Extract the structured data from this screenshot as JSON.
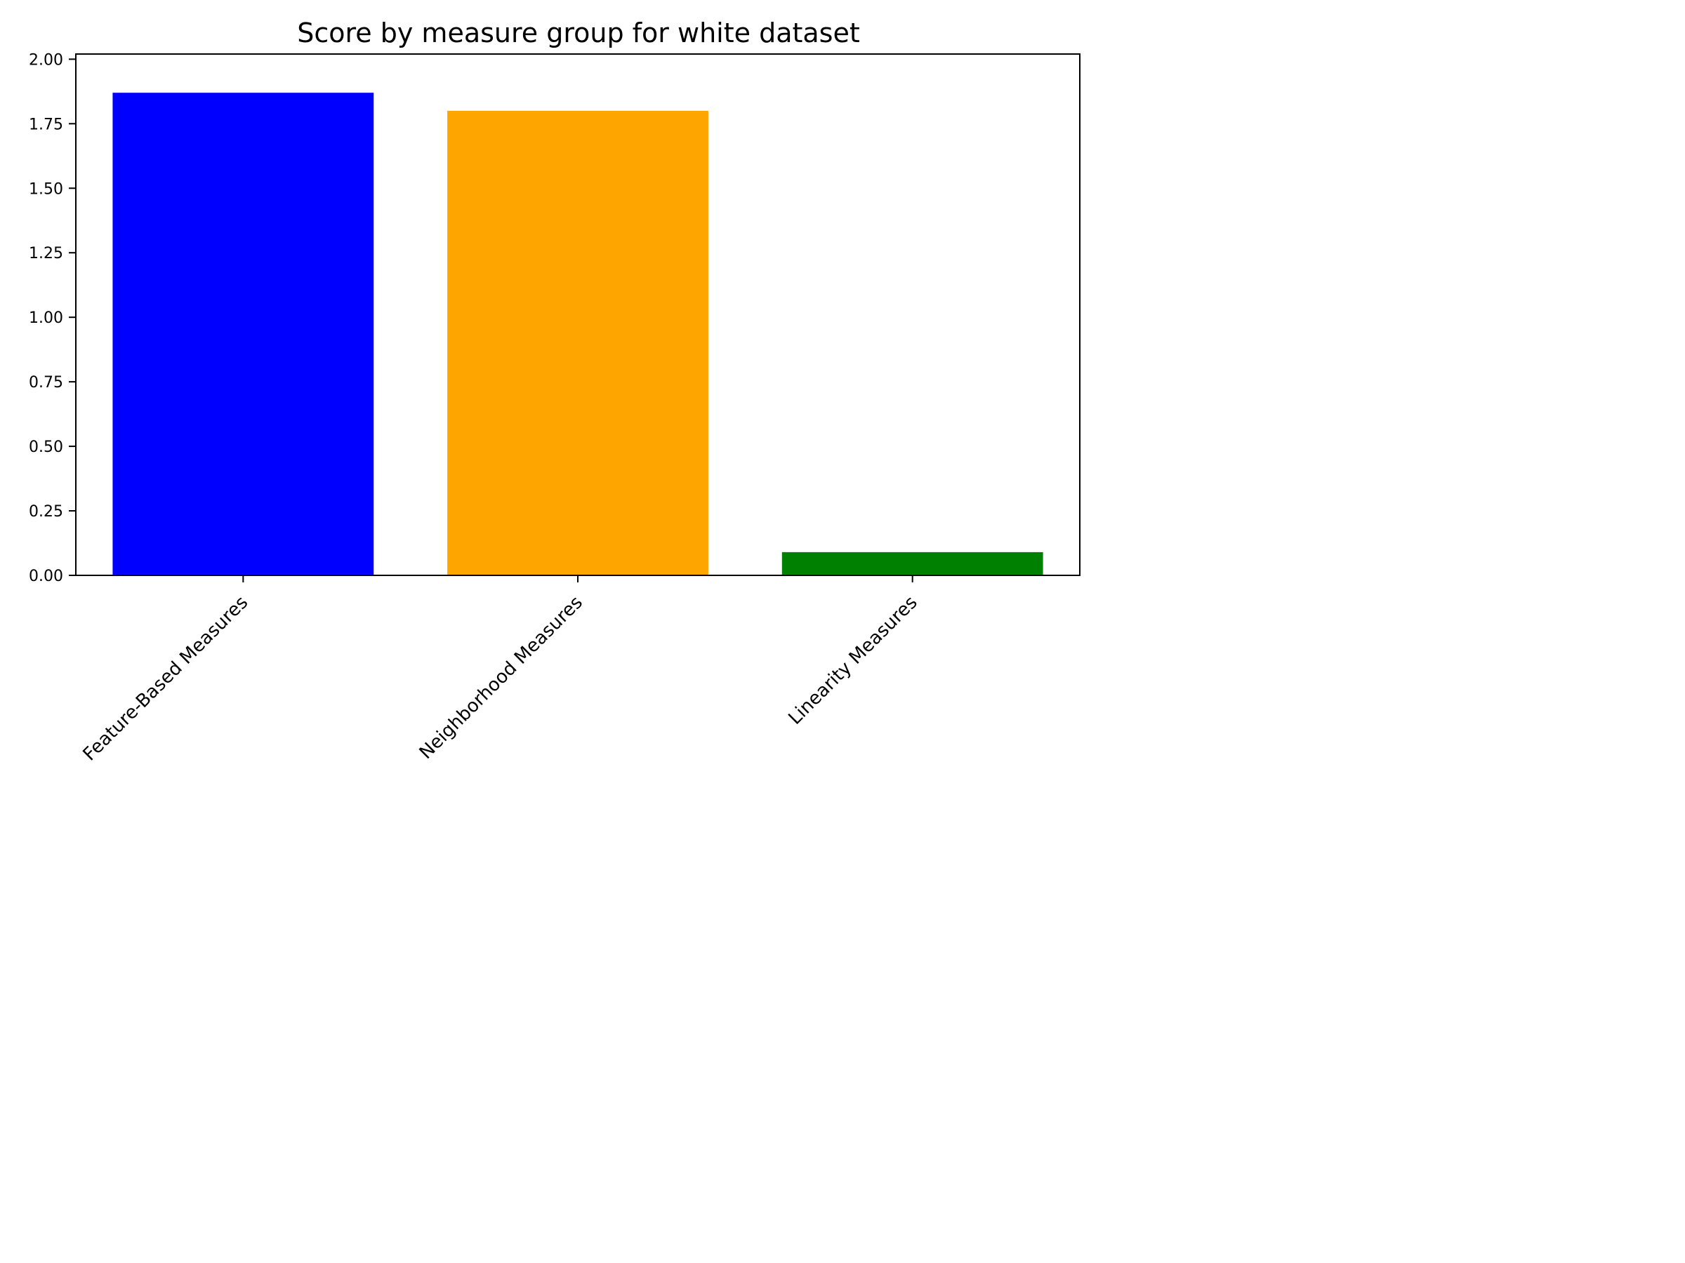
{
  "chart_data": {
    "type": "bar",
    "title": "Score by measure group for white dataset",
    "xlabel": "",
    "ylabel": "",
    "categories": [
      "Feature-Based Measures",
      "Neighborhood Measures",
      "Linearity Measures"
    ],
    "values": [
      1.87,
      1.8,
      0.09
    ],
    "colors": [
      "#0000ff",
      "#ffa500",
      "#008000"
    ],
    "ylim": [
      0,
      2.02
    ],
    "yticks": [
      "0.00",
      "0.25",
      "0.50",
      "0.75",
      "1.00",
      "1.25",
      "1.50",
      "1.75",
      "2.00"
    ],
    "grid": false,
    "legend": "none"
  }
}
